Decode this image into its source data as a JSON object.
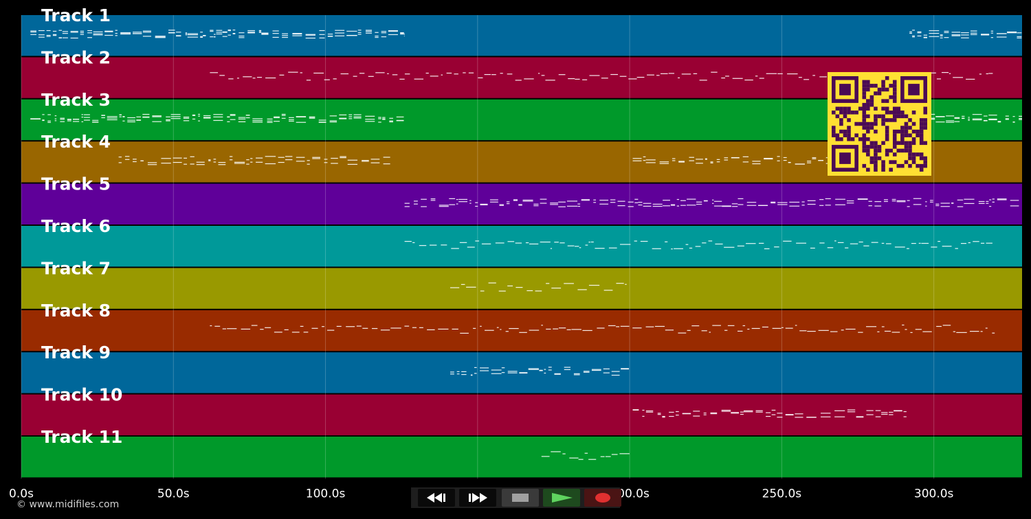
{
  "tracks": [
    {
      "label": "Track 1",
      "color": "#00679a"
    },
    {
      "label": "Track 2",
      "color": "#990033"
    },
    {
      "label": "Track 3",
      "color": "#00992a"
    },
    {
      "label": "Track 4",
      "color": "#996600"
    },
    {
      "label": "Track 5",
      "color": "#5f0099"
    },
    {
      "label": "Track 6",
      "color": "#009999"
    },
    {
      "label": "Track 7",
      "color": "#999900"
    },
    {
      "label": "Track 8",
      "color": "#992b00"
    },
    {
      "label": "Track 9",
      "color": "#00679a"
    },
    {
      "label": "Track 10",
      "color": "#990033"
    },
    {
      "label": "Track 11",
      "color": "#00992a"
    }
  ],
  "axis": {
    "ticks": [
      "0.0s",
      "50.0s",
      "100.0s",
      "150.0s",
      "200.0s",
      "250.0s",
      "300.0s"
    ],
    "tick_values": [
      0,
      50,
      100,
      150,
      200,
      250,
      300
    ],
    "range": [
      0,
      329
    ]
  },
  "copyright": "© www.midifiles.com",
  "transport": {
    "rewind": "rewind-icon",
    "fast_forward": "fast-forward-icon",
    "stop": "stop-icon",
    "play": "play-icon",
    "record": "record-icon"
  },
  "qr_color": "#ffe033"
}
